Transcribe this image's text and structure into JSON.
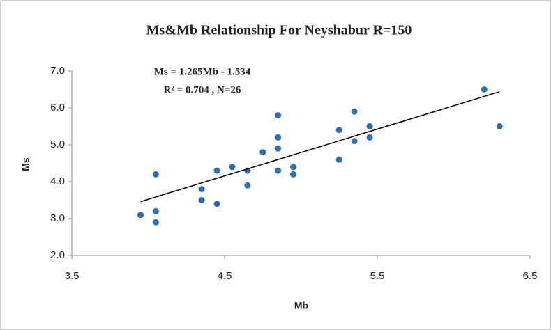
{
  "chart_data": {
    "type": "scatter",
    "title": "Ms&Mb Relationship For Neyshabur R=150",
    "annotations": [
      "Ms = 1.265Mb - 1.534",
      "R² = 0.704 , N=26"
    ],
    "x_label": "Mb",
    "y_label": "Ms",
    "series": [
      {
        "color": "#2f6db5",
        "x": [
          3.95,
          4.05,
          4.05,
          4.05,
          4.35,
          4.35,
          4.45,
          4.45,
          4.55,
          4.65,
          4.65,
          4.75,
          4.85,
          4.85,
          4.85,
          4.85,
          4.95,
          4.95,
          5.25,
          5.25,
          5.35,
          5.35,
          5.45,
          5.45,
          6.2,
          6.3
        ],
        "values": [
          3.1,
          4.2,
          3.2,
          2.9,
          3.8,
          3.5,
          4.3,
          3.4,
          4.4,
          4.3,
          3.9,
          4.8,
          5.8,
          5.2,
          4.9,
          4.3,
          4.4,
          4.2,
          5.4,
          4.6,
          5.9,
          5.1,
          5.5,
          5.2,
          6.5,
          5.5
        ]
      }
    ],
    "trendline": {
      "color": "#000000",
      "x": [
        3.95,
        6.3
      ],
      "values": [
        3.46,
        6.44
      ]
    },
    "xlim": [
      3.5,
      6.5
    ],
    "xticks": [
      3.5,
      4.5,
      5.5,
      6.5
    ],
    "ylim": [
      2,
      7
    ],
    "yticks": [
      {
        "value": 2,
        "label": "2.0"
      },
      {
        "value": 3,
        "label": "3.0"
      },
      {
        "value": 4,
        "label": "4.0"
      },
      {
        "value": 5,
        "label": "5.0"
      },
      {
        "value": 6,
        "label": "6.0"
      },
      {
        "value": 7,
        "label": "7.0"
      }
    ]
  }
}
